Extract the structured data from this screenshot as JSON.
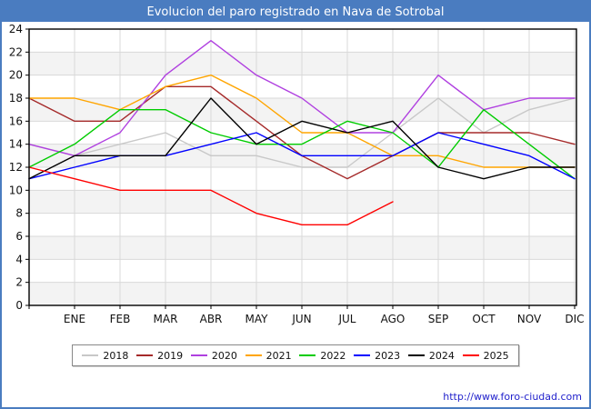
{
  "title": "Evolucion del paro registrado en Nava de Sotrobal",
  "footer": {
    "url": "http://www.foro-ciudad.com"
  },
  "colors": {
    "frame_blue": "#4a7cc0",
    "plot_band_gray": "#f3f3f3",
    "gridline": "#d9d9d9",
    "axis": "#000000",
    "footer_link": "#2222cc"
  },
  "chart_data": {
    "type": "line",
    "title": "Evolucion del paro registrado en Nava de Sotrobal",
    "xlabel": "",
    "ylabel": "",
    "x_labels": [
      "ENE",
      "FEB",
      "MAR",
      "ABR",
      "MAY",
      "JUN",
      "JUL",
      "AGO",
      "SEP",
      "OCT",
      "NOV",
      "DIC"
    ],
    "leading_point": "each series starts at the plot left edge with the previous December value (unlabeled tick)",
    "ylim": [
      0,
      24
    ],
    "y_ticks": [
      0,
      2,
      4,
      6,
      8,
      10,
      12,
      14,
      16,
      18,
      20,
      22,
      24
    ],
    "grid": true,
    "legend_position": "bottom",
    "series": [
      {
        "name": "2018",
        "color": "#c8c8c8",
        "values": [
          14,
          13,
          14,
          15,
          13,
          13,
          12,
          12,
          15,
          18,
          15,
          17,
          18
        ]
      },
      {
        "name": "2019",
        "color": "#a52a2a",
        "values": [
          18,
          16,
          16,
          19,
          19,
          16,
          13,
          11,
          13,
          15,
          15,
          15,
          14
        ]
      },
      {
        "name": "2020",
        "color": "#b040e0",
        "values": [
          14,
          13,
          15,
          20,
          23,
          20,
          18,
          15,
          15,
          20,
          17,
          18,
          18
        ]
      },
      {
        "name": "2021",
        "color": "#ffa500",
        "values": [
          18,
          18,
          17,
          19,
          20,
          18,
          15,
          15,
          13,
          13,
          12,
          12,
          12
        ]
      },
      {
        "name": "2022",
        "color": "#00cc00",
        "values": [
          12,
          14,
          17,
          17,
          15,
          14,
          14,
          16,
          15,
          12,
          17,
          14,
          11
        ]
      },
      {
        "name": "2023",
        "color": "#0000ff",
        "values": [
          11,
          12,
          13,
          13,
          14,
          15,
          13,
          13,
          13,
          15,
          14,
          13,
          11
        ]
      },
      {
        "name": "2024",
        "color": "#000000",
        "values": [
          11,
          13,
          13,
          13,
          18,
          14,
          16,
          15,
          16,
          12,
          11,
          12,
          12
        ]
      },
      {
        "name": "2025",
        "color": "#ff0000",
        "values": [
          12,
          11,
          10,
          10,
          10,
          8,
          7,
          7,
          9,
          null,
          null,
          null,
          null
        ]
      }
    ]
  }
}
